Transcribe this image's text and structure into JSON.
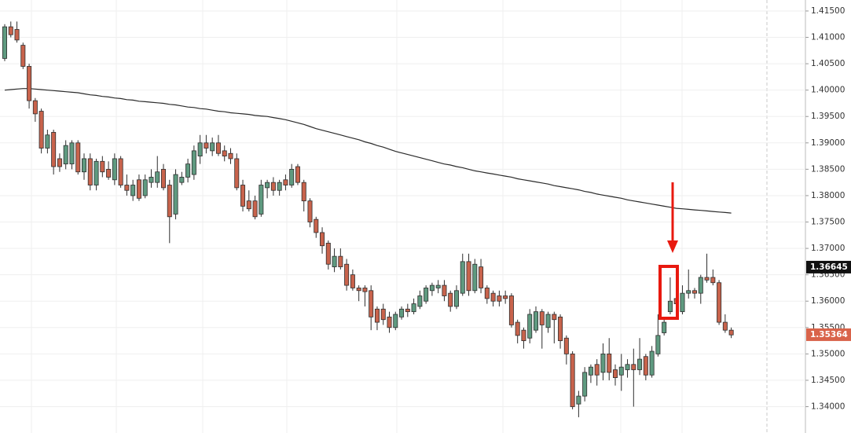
{
  "chart_data": {
    "type": "candlestick",
    "up_color": "#5f9a80",
    "down_color": "#c8634c",
    "outline_color": "#2e2e2e",
    "open": [
      1.406,
      1.412,
      1.4115,
      1.4085,
      1.4045,
      1.398,
      1.396,
      1.389,
      1.392,
      1.387,
      1.386,
      1.386,
      1.39,
      1.3845,
      1.387,
      1.382,
      1.3865,
      1.385,
      1.383,
      1.387,
      1.382,
      1.38,
      1.383,
      1.38,
      1.3825,
      1.3825,
      1.385,
      1.382,
      1.3765,
      1.3825,
      1.3835,
      1.384,
      1.3875,
      1.39,
      1.3885,
      1.39,
      1.3885,
      1.388,
      1.387,
      1.382,
      1.379,
      1.379,
      1.3765,
      1.3815,
      1.3825,
      1.381,
      1.383,
      1.382,
      1.3855,
      1.3825,
      1.379,
      1.3755,
      1.373,
      1.371,
      1.3665,
      1.3685,
      1.367,
      1.365,
      1.3625,
      1.3625,
      1.362,
      1.3585,
      1.3585,
      1.357,
      1.355,
      1.357,
      1.3585,
      1.358,
      1.359,
      1.36,
      1.362,
      1.3625,
      1.363,
      1.3615,
      1.359,
      1.3615,
      1.3675,
      1.362,
      1.3665,
      1.3625,
      1.3615,
      1.361,
      1.361,
      1.361,
      1.356,
      1.3545,
      1.353,
      1.3545,
      1.358,
      1.355,
      1.3575,
      1.357,
      1.353,
      1.35,
      1.3405,
      1.342,
      1.346,
      1.348,
      1.3465,
      1.35,
      1.347,
      1.346,
      1.347,
      1.348,
      1.347,
      1.3495,
      1.346,
      1.35,
      1.354,
      1.358,
      1.3605,
      1.358,
      1.3615,
      1.362,
      1.3615,
      1.3645,
      1.3645,
      1.3635,
      1.356,
      1.3545
    ],
    "high": [
      1.4125,
      1.413,
      1.413,
      1.409,
      1.405,
      1.3985,
      1.3965,
      1.3925,
      1.3925,
      1.388,
      1.3905,
      1.3905,
      1.3905,
      1.388,
      1.388,
      1.387,
      1.3875,
      1.3865,
      1.388,
      1.3875,
      1.384,
      1.383,
      1.384,
      1.384,
      1.385,
      1.3875,
      1.386,
      1.383,
      1.385,
      1.3845,
      1.387,
      1.3895,
      1.3915,
      1.3915,
      1.391,
      1.3915,
      1.3895,
      1.389,
      1.388,
      1.383,
      1.381,
      1.38,
      1.383,
      1.383,
      1.3835,
      1.383,
      1.384,
      1.386,
      1.386,
      1.383,
      1.3795,
      1.376,
      1.374,
      1.3715,
      1.37,
      1.37,
      1.368,
      1.366,
      1.363,
      1.363,
      1.363,
      1.359,
      1.3595,
      1.358,
      1.358,
      1.359,
      1.3595,
      1.3605,
      1.362,
      1.363,
      1.3635,
      1.364,
      1.364,
      1.362,
      1.363,
      1.369,
      1.369,
      1.368,
      1.368,
      1.363,
      1.362,
      1.362,
      1.362,
      1.3615,
      1.3565,
      1.355,
      1.3585,
      1.359,
      1.3585,
      1.358,
      1.358,
      1.3575,
      1.3535,
      1.3505,
      1.343,
      1.3475,
      1.348,
      1.349,
      1.352,
      1.353,
      1.348,
      1.35,
      1.349,
      1.351,
      1.353,
      1.35,
      1.3515,
      1.3575,
      1.357,
      1.3645,
      1.361,
      1.363,
      1.366,
      1.3625,
      1.365,
      1.369,
      1.366,
      1.364,
      1.3575,
      1.355
    ],
    "low": [
      1.4055,
      1.41,
      1.409,
      1.404,
      1.3965,
      1.394,
      1.388,
      1.388,
      1.384,
      1.3845,
      1.385,
      1.385,
      1.384,
      1.383,
      1.381,
      1.381,
      1.3835,
      1.383,
      1.382,
      1.3815,
      1.38,
      1.379,
      1.379,
      1.3795,
      1.3815,
      1.3815,
      1.381,
      1.371,
      1.3755,
      1.382,
      1.3825,
      1.383,
      1.386,
      1.388,
      1.3875,
      1.3875,
      1.3865,
      1.386,
      1.381,
      1.377,
      1.377,
      1.3755,
      1.376,
      1.3795,
      1.38,
      1.38,
      1.381,
      1.3815,
      1.382,
      1.377,
      1.374,
      1.372,
      1.369,
      1.366,
      1.3655,
      1.366,
      1.362,
      1.362,
      1.36,
      1.359,
      1.3545,
      1.3545,
      1.3555,
      1.354,
      1.3545,
      1.3565,
      1.357,
      1.3575,
      1.3585,
      1.3595,
      1.361,
      1.3615,
      1.36,
      1.358,
      1.3585,
      1.361,
      1.361,
      1.3615,
      1.3615,
      1.3595,
      1.359,
      1.359,
      1.3595,
      1.355,
      1.352,
      1.351,
      1.352,
      1.354,
      1.351,
      1.354,
      1.352,
      1.351,
      1.348,
      1.3395,
      1.338,
      1.341,
      1.3445,
      1.344,
      1.345,
      1.345,
      1.344,
      1.343,
      1.3455,
      1.34,
      1.346,
      1.345,
      1.3455,
      1.3495,
      1.3535,
      1.3575,
      1.358,
      1.3575,
      1.3605,
      1.3605,
      1.3595,
      1.3635,
      1.363,
      1.3555,
      1.354,
      1.353
    ],
    "close": [
      1.412,
      1.4105,
      1.4095,
      1.4045,
      1.398,
      1.3955,
      1.389,
      1.3915,
      1.3855,
      1.3855,
      1.3895,
      1.39,
      1.3845,
      1.387,
      1.382,
      1.3865,
      1.3845,
      1.3835,
      1.387,
      1.382,
      1.381,
      1.382,
      1.3795,
      1.383,
      1.3835,
      1.3845,
      1.3815,
      1.376,
      1.384,
      1.3835,
      1.386,
      1.3885,
      1.39,
      1.389,
      1.39,
      1.388,
      1.3875,
      1.387,
      1.3815,
      1.378,
      1.3775,
      1.376,
      1.382,
      1.3825,
      1.381,
      1.3825,
      1.382,
      1.385,
      1.3825,
      1.379,
      1.375,
      1.373,
      1.3705,
      1.367,
      1.3685,
      1.3665,
      1.363,
      1.3625,
      1.362,
      1.3618,
      1.357,
      1.356,
      1.3565,
      1.355,
      1.3575,
      1.3585,
      1.358,
      1.3595,
      1.361,
      1.3625,
      1.363,
      1.363,
      1.361,
      1.359,
      1.362,
      1.3675,
      1.362,
      1.367,
      1.3625,
      1.3605,
      1.36,
      1.36,
      1.3605,
      1.3555,
      1.3535,
      1.3525,
      1.3575,
      1.358,
      1.3555,
      1.3575,
      1.3565,
      1.3525,
      1.35,
      1.34,
      1.342,
      1.3465,
      1.3475,
      1.346,
      1.35,
      1.3465,
      1.3455,
      1.3475,
      1.348,
      1.347,
      1.349,
      1.346,
      1.3505,
      1.3535,
      1.356,
      1.36,
      1.3595,
      1.3615,
      1.362,
      1.3615,
      1.3645,
      1.364,
      1.3635,
      1.356,
      1.3545,
      1.3536
    ],
    "moving_average": {
      "color": "#2b2b2b",
      "values": [
        1.4,
        1.4001,
        1.4002,
        1.4003,
        1.4003,
        1.4002,
        1.4001,
        1.4,
        1.3999,
        1.3998,
        1.3997,
        1.3996,
        1.3995,
        1.3993,
        1.3991,
        1.399,
        1.3988,
        1.3987,
        1.3985,
        1.3984,
        1.3982,
        1.3981,
        1.3979,
        1.3978,
        1.3977,
        1.3976,
        1.3975,
        1.3973,
        1.3972,
        1.397,
        1.3968,
        1.3967,
        1.3965,
        1.3964,
        1.3962,
        1.396,
        1.3959,
        1.3957,
        1.3956,
        1.3955,
        1.3954,
        1.3952,
        1.3951,
        1.395,
        1.3948,
        1.3946,
        1.3944,
        1.3941,
        1.3938,
        1.3935,
        1.3931,
        1.3927,
        1.3924,
        1.3921,
        1.3918,
        1.3915,
        1.3912,
        1.3909,
        1.3906,
        1.3902,
        1.3899,
        1.3895,
        1.3892,
        1.3888,
        1.3884,
        1.3881,
        1.3878,
        1.3875,
        1.3872,
        1.3869,
        1.3866,
        1.3863,
        1.386,
        1.3858,
        1.3855,
        1.3853,
        1.385,
        1.3847,
        1.3845,
        1.3843,
        1.3841,
        1.3839,
        1.3837,
        1.3835,
        1.3832,
        1.383,
        1.3828,
        1.3826,
        1.3824,
        1.3822,
        1.3819,
        1.3817,
        1.3815,
        1.3813,
        1.3811,
        1.3808,
        1.3806,
        1.3803,
        1.3801,
        1.3799,
        1.3797,
        1.3795,
        1.3792,
        1.379,
        1.3788,
        1.3786,
        1.3784,
        1.3782,
        1.378,
        1.3778,
        1.3776,
        1.3775,
        1.3774,
        1.3773,
        1.3772,
        1.3771,
        1.377,
        1.3769,
        1.3768,
        1.3767
      ]
    },
    "ylim": [
      1.33501,
      1.41708
    ],
    "yticks": [
      {
        "value": 1.415,
        "label": "1.41500"
      },
      {
        "value": 1.41,
        "label": "1.41000"
      },
      {
        "value": 1.405,
        "label": "1.40500"
      },
      {
        "value": 1.4,
        "label": "1.40000"
      },
      {
        "value": 1.395,
        "label": "1.39500"
      },
      {
        "value": 1.39,
        "label": "1.39000"
      },
      {
        "value": 1.385,
        "label": "1.38500"
      },
      {
        "value": 1.38,
        "label": "1.38000"
      },
      {
        "value": 1.375,
        "label": "1.37500"
      },
      {
        "value": 1.37,
        "label": "1.37000"
      },
      {
        "value": 1.365,
        "label": "1.36500"
      },
      {
        "value": 1.36,
        "label": "1.36000"
      },
      {
        "value": 1.355,
        "label": "1.35500"
      },
      {
        "value": 1.35,
        "label": "1.35000"
      },
      {
        "value": 1.345,
        "label": "1.34500"
      },
      {
        "value": 1.34,
        "label": "1.34000"
      }
    ],
    "price_labels": [
      {
        "value": 1.36645,
        "label": "1.36645",
        "color": "#111111"
      },
      {
        "value": 1.35364,
        "label": "1.35364",
        "color": "#d9634a"
      }
    ],
    "grid": true
  }
}
